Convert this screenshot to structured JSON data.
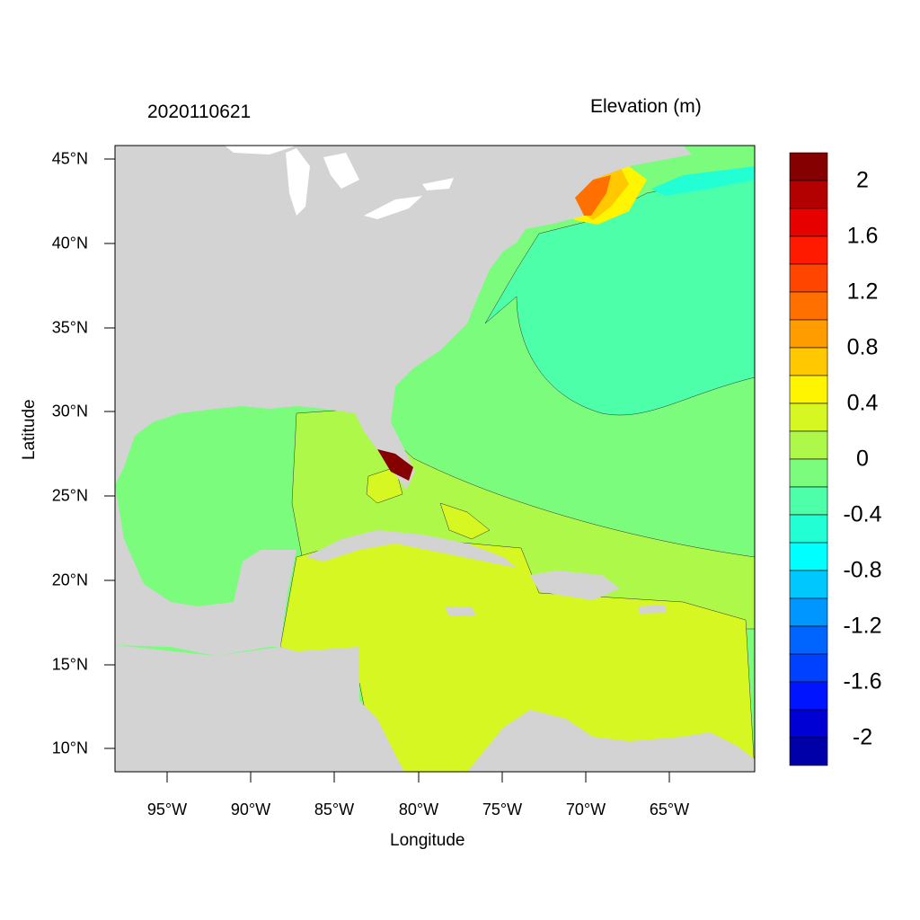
{
  "title_left": "2020110621",
  "title_right": "Elevation (m)",
  "xlabel": "Longitude",
  "ylabel": "Latitude",
  "lat_ticks": [
    "45°N",
    "40°N",
    "35°N",
    "30°N",
    "25°N",
    "20°N",
    "15°N",
    "10°N"
  ],
  "lon_ticks": [
    "95°W",
    "90°W",
    "85°W",
    "80°W",
    "75°W",
    "70°W",
    "65°W"
  ],
  "extent": {
    "lon": [
      -98.1,
      -59.8
    ],
    "lat": [
      8.6,
      45.8
    ]
  },
  "colorbar": {
    "labels": [
      "2",
      "1.6",
      "1.2",
      "0.8",
      "0.4",
      "0",
      "-0.4",
      "-0.8",
      "-1.2",
      "-1.6",
      "-2"
    ],
    "boundaries": [
      2,
      1.8,
      1.6,
      1.4,
      1.2,
      1.0,
      0.8,
      0.6,
      0.4,
      0.2,
      0,
      -0.2,
      -0.4,
      -0.6,
      -0.8,
      -1.0,
      -1.2,
      -1.4,
      -1.6,
      -1.8,
      -2
    ],
    "colors": [
      "#850000",
      "#B30000",
      "#E60000",
      "#FF1A00",
      "#FF4500",
      "#FF7000",
      "#FF9C00",
      "#FFC800",
      "#FFF500",
      "#D7F723",
      "#AEF84A",
      "#7CFC7C",
      "#4EFFAA",
      "#22FFD4",
      "#00FFFF",
      "#00C8FF",
      "#0096FF",
      "#0064FF",
      "#0040FF",
      "#0014FF",
      "#0000D4",
      "#0000A8"
    ]
  },
  "colors": {
    "land": "#D3D3D3",
    "lakes": "#FFFFFF"
  }
}
